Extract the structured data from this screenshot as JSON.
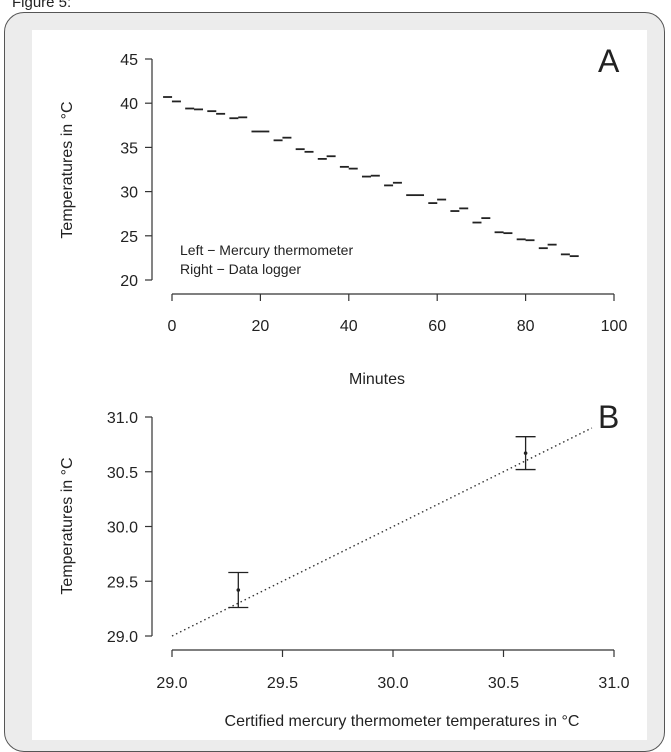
{
  "caption": "Figure 5:",
  "chart_data": [
    {
      "type": "scatter",
      "panel_label": "A",
      "xlabel": "Minutes",
      "ylabel": "Temperatures in °C",
      "xlim": [
        0,
        100
      ],
      "ylim": [
        20,
        45
      ],
      "xticks": [
        0,
        20,
        40,
        60,
        80,
        100
      ],
      "yticks": [
        20,
        25,
        30,
        35,
        40,
        45
      ],
      "grid": false,
      "annotations": [
        "Left − Mercury thermometer",
        "Right − Data logger"
      ],
      "series": [
        {
          "name": "Mercury thermometer",
          "x": [
            -1,
            4,
            9,
            14,
            19,
            24,
            29,
            34,
            39,
            44,
            49,
            54,
            59,
            64,
            69,
            74,
            79,
            84,
            89
          ],
          "y": [
            40.7,
            39.4,
            39.1,
            38.3,
            36.8,
            35.8,
            34.8,
            33.7,
            32.8,
            31.7,
            30.7,
            29.6,
            28.7,
            27.8,
            26.5,
            25.4,
            24.6,
            23.6,
            22.9
          ]
        },
        {
          "name": "Data logger",
          "x": [
            1,
            6,
            11,
            16,
            21,
            26,
            31,
            36,
            41,
            46,
            51,
            56,
            61,
            66,
            71,
            76,
            81,
            86,
            91
          ],
          "y": [
            40.2,
            39.3,
            38.8,
            38.4,
            36.8,
            36.1,
            34.5,
            34.0,
            32.6,
            31.8,
            31.0,
            29.6,
            29.1,
            28.1,
            27.0,
            25.3,
            24.5,
            24.0,
            22.7
          ]
        }
      ]
    },
    {
      "type": "scatter",
      "panel_label": "B",
      "xlabel": "Certified mercury thermometer temperatures in °C",
      "ylabel": "Temperatures in °C",
      "xlim": [
        29.0,
        31.0
      ],
      "ylim": [
        29.0,
        31.0
      ],
      "xticks": [
        "29.0",
        "29.5",
        "30.0",
        "30.5",
        "31.0"
      ],
      "yticks": [
        "29.0",
        "29.5",
        "30.0",
        "30.5",
        "31.0"
      ],
      "grid": false,
      "reference_line": {
        "style": "dotted",
        "from": [
          29.0,
          29.0
        ],
        "to": [
          30.9,
          30.9
        ]
      },
      "points": [
        {
          "x": 29.3,
          "y": 29.42,
          "err_low": 29.26,
          "err_high": 29.58
        },
        {
          "x": 30.6,
          "y": 30.67,
          "err_low": 30.52,
          "err_high": 30.82
        }
      ]
    }
  ]
}
